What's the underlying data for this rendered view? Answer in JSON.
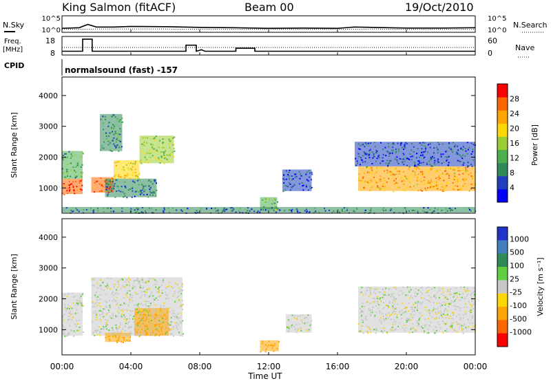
{
  "header": {
    "station": "King Salmon (fitACF)",
    "beam": "Beam 00",
    "date": "19/Oct/2010"
  },
  "top_panels": {
    "nsky_label": "N.Sky",
    "nsearch_label": "N.Search",
    "noise_ticks_left": [
      "10^5",
      "10^0"
    ],
    "noise_ticks_right": [
      "10^5",
      "10^0"
    ],
    "freq_label": "Freq.",
    "freq_unit": "[MHz]",
    "freq_ticks": [
      "18",
      "8"
    ],
    "nave_label": "Nave",
    "nave_ticks": [
      "60",
      "0"
    ],
    "cpid_label": "CPID",
    "cpid_text": "normalsound (fast) -157"
  },
  "x_axis": {
    "label": "Time UT",
    "ticks": [
      "00:00",
      "04:00",
      "08:00",
      "12:00",
      "16:00",
      "20:00",
      "00:00"
    ]
  },
  "colors": {
    "power_scale": [
      "#0000ff",
      "#1f3fbf",
      "#2e8b57",
      "#4caf50",
      "#9acd32",
      "#ffd700",
      "#ffa500",
      "#ff6600",
      "#ff0000"
    ],
    "velocity_scale": [
      "#2233cc",
      "#3f7fbf",
      "#2e8b57",
      "#5fcf3f",
      "#c8c8c8",
      "#ffd700",
      "#ffa500",
      "#ff6600",
      "#ff0000"
    ]
  },
  "chart_data": [
    {
      "type": "line",
      "panel": "noise",
      "series": [
        {
          "name": "N.Sky",
          "x": [
            0,
            1,
            1.5,
            2,
            3,
            4,
            6,
            8,
            10,
            12,
            14,
            16,
            17,
            18,
            20,
            22,
            24
          ],
          "y": [
            1.2,
            1.4,
            2.4,
            1.6,
            1.6,
            1.8,
            1.7,
            1.5,
            1.4,
            1.2,
            1.3,
            1.2,
            1.6,
            1.5,
            1.3,
            1.3,
            1.4
          ]
        },
        {
          "name": "N.Search",
          "x": [
            0,
            2,
            4,
            6,
            8,
            10,
            12,
            14,
            16,
            18,
            20,
            22,
            24
          ],
          "y": [
            0.9,
            1.0,
            1.0,
            1.0,
            0.9,
            0.9,
            0.9,
            0.9,
            0.9,
            1.0,
            0.9,
            0.9,
            0.9
          ]
        }
      ],
      "ylim": [
        "10^0",
        "10^5"
      ]
    },
    {
      "type": "line",
      "panel": "frequency",
      "series": [
        {
          "name": "Freq.",
          "x": [
            0,
            1.2,
            1.2,
            1.75,
            1.75,
            7.2,
            7.2,
            7.8,
            7.8,
            8.1,
            8.3,
            8.5,
            10.1,
            10.1,
            11.2,
            11.2,
            24
          ],
          "y": [
            10.5,
            10.5,
            18.5,
            18.5,
            10.5,
            10.5,
            14.5,
            14.5,
            10.5,
            11.5,
            10.5,
            10.5,
            10.5,
            12.5,
            12.5,
            10.5,
            10.5
          ]
        },
        {
          "name": "Nave",
          "x": [
            0,
            24
          ],
          "y": [
            30,
            30
          ]
        }
      ],
      "ylim_freq": [
        8,
        18
      ],
      "ylim_nave": [
        0,
        60
      ]
    },
    {
      "type": "heatmap",
      "panel": "power",
      "title": "",
      "ylabel": "Slant Range [km]",
      "xlabel": "",
      "xlim": [
        "00:00",
        "24:00"
      ],
      "ylim": [
        180,
        4600
      ],
      "yticks": [
        "1000",
        "2000",
        "3000",
        "4000"
      ],
      "colorbar": {
        "label": "Power [dB]",
        "ticks": [
          "4",
          "8",
          "12",
          "16",
          "20",
          "24",
          "28"
        ]
      },
      "regions": [
        {
          "t0": 0.0,
          "t1": 1.2,
          "r0": 800,
          "r1": 1300,
          "value": 28
        },
        {
          "t0": 0.0,
          "t1": 1.2,
          "r0": 1300,
          "r1": 2200,
          "value": 12
        },
        {
          "t0": 1.7,
          "t1": 3.0,
          "r0": 850,
          "r1": 1350,
          "value": 26
        },
        {
          "t0": 3.0,
          "t1": 4.5,
          "r0": 1300,
          "r1": 1900,
          "value": 20
        },
        {
          "t0": 4.5,
          "t1": 6.5,
          "r0": 1800,
          "r1": 2700,
          "value": 16
        },
        {
          "t0": 2.5,
          "t1": 5.5,
          "r0": 700,
          "r1": 1300,
          "value": 8
        },
        {
          "t0": 2.2,
          "t1": 3.5,
          "r0": 2200,
          "r1": 3400,
          "value": 10
        },
        {
          "t0": 12.8,
          "t1": 14.5,
          "r0": 900,
          "r1": 1600,
          "value": 6
        },
        {
          "t0": 11.5,
          "t1": 12.5,
          "r0": 300,
          "r1": 700,
          "value": 14
        },
        {
          "t0": 17.2,
          "t1": 24.0,
          "r0": 900,
          "r1": 1700,
          "value": 22
        },
        {
          "t0": 17.0,
          "t1": 24.0,
          "r0": 1700,
          "r1": 2500,
          "value": 6
        },
        {
          "t0": 0.0,
          "t1": 24.0,
          "r0": 200,
          "r1": 380,
          "value": 8
        }
      ]
    },
    {
      "type": "heatmap",
      "panel": "velocity",
      "title": "",
      "ylabel": "Slant Range [km]",
      "xlabel": "Time UT",
      "xlim": [
        "00:00",
        "24:00"
      ],
      "ylim": [
        180,
        4600
      ],
      "yticks": [
        "1000",
        "2000",
        "3000",
        "4000"
      ],
      "colorbar": {
        "label": "Velocity [m s⁻¹]",
        "ticks": [
          "1000",
          "500",
          "100",
          "25",
          "-25",
          "-100",
          "-500",
          "-1000"
        ]
      },
      "regions": [
        {
          "t0": 0.0,
          "t1": 1.2,
          "r0": 800,
          "r1": 2200,
          "value": 0
        },
        {
          "t0": 1.7,
          "t1": 7.0,
          "r0": 800,
          "r1": 2700,
          "value": 0
        },
        {
          "t0": 4.2,
          "t1": 6.2,
          "r0": 800,
          "r1": 1700,
          "value": -300
        },
        {
          "t0": 2.5,
          "t1": 4.0,
          "r0": 600,
          "r1": 900,
          "value": -200
        },
        {
          "t0": 11.5,
          "t1": 12.6,
          "r0": 300,
          "r1": 650,
          "value": -150
        },
        {
          "t0": 13.0,
          "t1": 14.5,
          "r0": 900,
          "r1": 1500,
          "value": 0
        },
        {
          "t0": 17.2,
          "t1": 24.0,
          "r0": 900,
          "r1": 2400,
          "value": 0
        }
      ]
    }
  ]
}
